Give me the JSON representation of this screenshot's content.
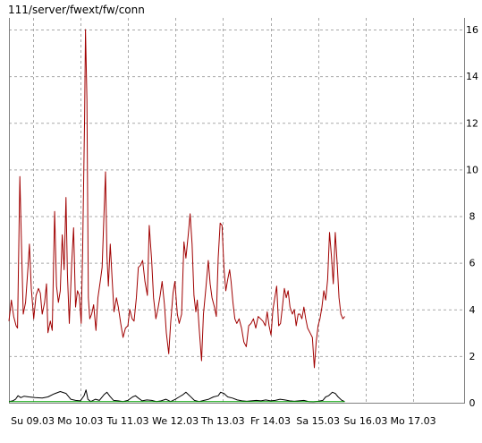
{
  "chart_data": {
    "type": "line",
    "title": "111/server/fwext/fw/conn",
    "xlabel": "",
    "ylabel": "",
    "ylim": [
      0,
      16
    ],
    "yticks": [
      0,
      2,
      4,
      6,
      8,
      10,
      12,
      14,
      16
    ],
    "xlim": [
      0,
      9.57
    ],
    "x_tick_positions": [
      0.5,
      1.5,
      2.5,
      3.5,
      4.5,
      5.5,
      6.5,
      7.5,
      8.5
    ],
    "x_tick_labels": [
      "Su 09.03",
      "Mo 10.03",
      "Tu 11.03",
      "We 12.03",
      "Th 13.03",
      "Fr 14.03",
      "Sa 15.03",
      "Su 16.03",
      "Mo 17.03"
    ],
    "grid": true,
    "legend": "none",
    "axes_color": "#808080",
    "grid_color": "#a9a9a9",
    "series": [
      {
        "color": "#a00000",
        "points": [
          [
            0.0,
            3.5
          ],
          [
            0.05,
            4.4
          ],
          [
            0.1,
            3.7
          ],
          [
            0.15,
            3.3
          ],
          [
            0.18,
            3.2
          ],
          [
            0.23,
            9.7
          ],
          [
            0.27,
            6.2
          ],
          [
            0.3,
            3.8
          ],
          [
            0.35,
            4.3
          ],
          [
            0.4,
            5.8
          ],
          [
            0.43,
            6.8
          ],
          [
            0.47,
            4.9
          ],
          [
            0.52,
            3.6
          ],
          [
            0.57,
            4.6
          ],
          [
            0.62,
            4.9
          ],
          [
            0.66,
            4.7
          ],
          [
            0.7,
            3.8
          ],
          [
            0.75,
            4.3
          ],
          [
            0.79,
            5.1
          ],
          [
            0.82,
            3.0
          ],
          [
            0.87,
            3.5
          ],
          [
            0.91,
            3.1
          ],
          [
            0.96,
            8.2
          ],
          [
            1.0,
            5.0
          ],
          [
            1.04,
            4.3
          ],
          [
            1.08,
            4.8
          ],
          [
            1.12,
            7.2
          ],
          [
            1.16,
            5.7
          ],
          [
            1.2,
            8.8
          ],
          [
            1.23,
            5.5
          ],
          [
            1.27,
            3.4
          ],
          [
            1.32,
            6.0
          ],
          [
            1.36,
            7.5
          ],
          [
            1.4,
            4.1
          ],
          [
            1.44,
            4.8
          ],
          [
            1.48,
            4.6
          ],
          [
            1.52,
            3.4
          ],
          [
            1.55,
            6.5
          ],
          [
            1.59,
            12.2
          ],
          [
            1.61,
            16.0
          ],
          [
            1.64,
            13.0
          ],
          [
            1.67,
            4.5
          ],
          [
            1.7,
            3.6
          ],
          [
            1.74,
            3.8
          ],
          [
            1.78,
            4.2
          ],
          [
            1.83,
            3.1
          ],
          [
            1.87,
            4.5
          ],
          [
            1.92,
            5.2
          ],
          [
            1.96,
            5.8
          ],
          [
            2.0,
            8.2
          ],
          [
            2.03,
            9.9
          ],
          [
            2.06,
            6.3
          ],
          [
            2.09,
            5.0
          ],
          [
            2.13,
            6.8
          ],
          [
            2.17,
            5.3
          ],
          [
            2.21,
            3.9
          ],
          [
            2.26,
            4.5
          ],
          [
            2.3,
            4.1
          ],
          [
            2.35,
            3.4
          ],
          [
            2.4,
            2.8
          ],
          [
            2.45,
            3.2
          ],
          [
            2.5,
            3.3
          ],
          [
            2.54,
            4.0
          ],
          [
            2.59,
            3.6
          ],
          [
            2.63,
            3.5
          ],
          [
            2.68,
            4.5
          ],
          [
            2.72,
            5.8
          ],
          [
            2.77,
            5.9
          ],
          [
            2.81,
            6.1
          ],
          [
            2.86,
            5.2
          ],
          [
            2.91,
            4.6
          ],
          [
            2.95,
            7.6
          ],
          [
            3.0,
            6.1
          ],
          [
            3.04,
            4.5
          ],
          [
            3.09,
            3.6
          ],
          [
            3.13,
            4.0
          ],
          [
            3.18,
            4.6
          ],
          [
            3.22,
            5.2
          ],
          [
            3.27,
            4.2
          ],
          [
            3.31,
            3.0
          ],
          [
            3.36,
            2.1
          ],
          [
            3.4,
            3.4
          ],
          [
            3.45,
            4.7
          ],
          [
            3.49,
            5.2
          ],
          [
            3.54,
            3.8
          ],
          [
            3.58,
            3.4
          ],
          [
            3.63,
            3.8
          ],
          [
            3.68,
            6.9
          ],
          [
            3.72,
            6.2
          ],
          [
            3.77,
            7.2
          ],
          [
            3.81,
            8.1
          ],
          [
            3.85,
            6.8
          ],
          [
            3.89,
            4.6
          ],
          [
            3.93,
            3.9
          ],
          [
            3.96,
            4.4
          ],
          [
            4.0,
            3.2
          ],
          [
            4.05,
            1.8
          ],
          [
            4.09,
            3.8
          ],
          [
            4.14,
            4.9
          ],
          [
            4.19,
            6.1
          ],
          [
            4.23,
            5.1
          ],
          [
            4.27,
            4.5
          ],
          [
            4.32,
            4.1
          ],
          [
            4.36,
            3.7
          ],
          [
            4.4,
            6.2
          ],
          [
            4.44,
            7.7
          ],
          [
            4.48,
            7.6
          ],
          [
            4.52,
            5.8
          ],
          [
            4.56,
            4.8
          ],
          [
            4.6,
            5.3
          ],
          [
            4.64,
            5.7
          ],
          [
            4.67,
            5.2
          ],
          [
            4.71,
            4.3
          ],
          [
            4.75,
            3.6
          ],
          [
            4.79,
            3.4
          ],
          [
            4.84,
            3.6
          ],
          [
            4.89,
            3.2
          ],
          [
            4.94,
            2.6
          ],
          [
            4.99,
            2.4
          ],
          [
            5.04,
            3.3
          ],
          [
            5.09,
            3.4
          ],
          [
            5.14,
            3.6
          ],
          [
            5.19,
            3.2
          ],
          [
            5.24,
            3.7
          ],
          [
            5.29,
            3.6
          ],
          [
            5.34,
            3.5
          ],
          [
            5.39,
            3.3
          ],
          [
            5.43,
            3.9
          ],
          [
            5.47,
            3.3
          ],
          [
            5.51,
            2.9
          ],
          [
            5.55,
            4.0
          ],
          [
            5.59,
            4.5
          ],
          [
            5.63,
            5.0
          ],
          [
            5.67,
            3.3
          ],
          [
            5.71,
            3.4
          ],
          [
            5.75,
            4.1
          ],
          [
            5.79,
            4.9
          ],
          [
            5.83,
            4.5
          ],
          [
            5.87,
            4.8
          ],
          [
            5.91,
            4.1
          ],
          [
            5.96,
            3.8
          ],
          [
            6.0,
            4.0
          ],
          [
            6.04,
            3.3
          ],
          [
            6.08,
            3.8
          ],
          [
            6.12,
            3.8
          ],
          [
            6.16,
            3.6
          ],
          [
            6.2,
            4.1
          ],
          [
            6.24,
            3.6
          ],
          [
            6.28,
            3.2
          ],
          [
            6.33,
            3.0
          ],
          [
            6.38,
            2.8
          ],
          [
            6.42,
            1.5
          ],
          [
            6.46,
            2.6
          ],
          [
            6.5,
            3.3
          ],
          [
            6.54,
            3.6
          ],
          [
            6.58,
            4.1
          ],
          [
            6.62,
            4.8
          ],
          [
            6.66,
            4.4
          ],
          [
            6.7,
            5.3
          ],
          [
            6.74,
            7.3
          ],
          [
            6.78,
            6.3
          ],
          [
            6.82,
            5.1
          ],
          [
            6.86,
            7.3
          ],
          [
            6.9,
            6.0
          ],
          [
            6.94,
            4.5
          ],
          [
            6.98,
            3.8
          ],
          [
            7.02,
            3.6
          ],
          [
            7.06,
            3.7
          ]
        ]
      },
      {
        "color": "#000000",
        "points": [
          [
            0.0,
            0.05
          ],
          [
            0.08,
            0.08
          ],
          [
            0.14,
            0.15
          ],
          [
            0.19,
            0.3
          ],
          [
            0.25,
            0.22
          ],
          [
            0.32,
            0.28
          ],
          [
            0.42,
            0.25
          ],
          [
            0.55,
            0.22
          ],
          [
            0.7,
            0.2
          ],
          [
            0.82,
            0.25
          ],
          [
            0.95,
            0.38
          ],
          [
            1.08,
            0.48
          ],
          [
            1.2,
            0.4
          ],
          [
            1.3,
            0.15
          ],
          [
            1.4,
            0.1
          ],
          [
            1.5,
            0.08
          ],
          [
            1.58,
            0.3
          ],
          [
            1.62,
            0.55
          ],
          [
            1.66,
            0.15
          ],
          [
            1.72,
            0.05
          ],
          [
            1.82,
            0.15
          ],
          [
            1.9,
            0.1
          ],
          [
            2.0,
            0.35
          ],
          [
            2.06,
            0.45
          ],
          [
            2.12,
            0.28
          ],
          [
            2.2,
            0.1
          ],
          [
            2.3,
            0.08
          ],
          [
            2.4,
            0.05
          ],
          [
            2.5,
            0.1
          ],
          [
            2.6,
            0.25
          ],
          [
            2.66,
            0.3
          ],
          [
            2.72,
            0.2
          ],
          [
            2.8,
            0.08
          ],
          [
            2.9,
            0.12
          ],
          [
            3.0,
            0.1
          ],
          [
            3.1,
            0.05
          ],
          [
            3.2,
            0.08
          ],
          [
            3.3,
            0.15
          ],
          [
            3.4,
            0.05
          ],
          [
            3.5,
            0.15
          ],
          [
            3.58,
            0.25
          ],
          [
            3.66,
            0.35
          ],
          [
            3.72,
            0.45
          ],
          [
            3.8,
            0.3
          ],
          [
            3.9,
            0.1
          ],
          [
            4.0,
            0.05
          ],
          [
            4.1,
            0.1
          ],
          [
            4.2,
            0.15
          ],
          [
            4.3,
            0.25
          ],
          [
            4.4,
            0.3
          ],
          [
            4.45,
            0.45
          ],
          [
            4.52,
            0.4
          ],
          [
            4.6,
            0.25
          ],
          [
            4.7,
            0.2
          ],
          [
            4.8,
            0.12
          ],
          [
            4.9,
            0.08
          ],
          [
            5.0,
            0.06
          ],
          [
            5.1,
            0.08
          ],
          [
            5.2,
            0.1
          ],
          [
            5.3,
            0.08
          ],
          [
            5.4,
            0.12
          ],
          [
            5.5,
            0.08
          ],
          [
            5.6,
            0.1
          ],
          [
            5.7,
            0.15
          ],
          [
            5.8,
            0.12
          ],
          [
            5.9,
            0.08
          ],
          [
            6.0,
            0.06
          ],
          [
            6.1,
            0.08
          ],
          [
            6.2,
            0.1
          ],
          [
            6.3,
            0.05
          ],
          [
            6.4,
            0.04
          ],
          [
            6.5,
            0.06
          ],
          [
            6.6,
            0.1
          ],
          [
            6.66,
            0.25
          ],
          [
            6.72,
            0.3
          ],
          [
            6.8,
            0.45
          ],
          [
            6.86,
            0.4
          ],
          [
            6.92,
            0.25
          ],
          [
            7.0,
            0.1
          ],
          [
            7.06,
            0.05
          ]
        ]
      },
      {
        "color": "#00a000",
        "points": [
          [
            0.0,
            0.05
          ],
          [
            7.06,
            0.05
          ]
        ]
      }
    ]
  }
}
